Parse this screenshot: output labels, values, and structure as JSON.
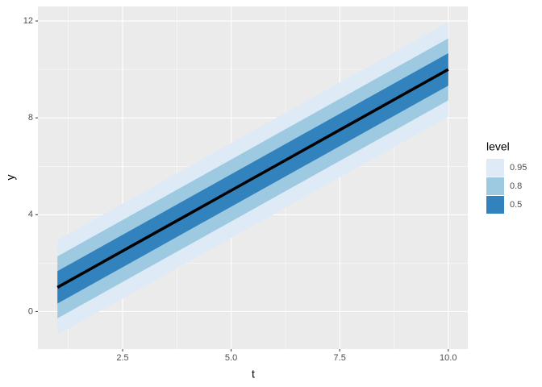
{
  "chart_data": {
    "type": "ribbon",
    "xlabel": "t",
    "ylabel": "y",
    "legend_title": "level",
    "x": [
      1,
      2,
      3,
      4,
      5,
      6,
      7,
      8,
      9,
      10
    ],
    "series": [
      {
        "name": "0.95",
        "color": "#deebf7",
        "lower": [
          -0.96,
          0.04,
          1.04,
          2.04,
          3.04,
          4.04,
          5.04,
          6.04,
          7.04,
          8.04
        ],
        "upper": [
          2.96,
          3.96,
          4.96,
          5.96,
          6.96,
          7.96,
          8.96,
          9.96,
          10.96,
          11.96
        ]
      },
      {
        "name": "0.8",
        "color": "#9ecae1",
        "lower": [
          -0.28,
          0.72,
          1.72,
          2.72,
          3.72,
          4.72,
          5.72,
          6.72,
          7.72,
          8.72
        ],
        "upper": [
          2.28,
          3.28,
          4.28,
          5.28,
          6.28,
          7.28,
          8.28,
          9.28,
          10.28,
          11.28
        ]
      },
      {
        "name": "0.5",
        "color": "#3182bd",
        "lower": [
          0.33,
          1.33,
          2.33,
          3.33,
          4.33,
          5.33,
          6.33,
          7.33,
          8.33,
          9.33
        ],
        "upper": [
          1.67,
          2.67,
          3.67,
          4.67,
          5.67,
          6.67,
          7.67,
          8.67,
          9.67,
          10.67
        ]
      }
    ],
    "line": {
      "color": "#000000",
      "values": [
        1,
        2,
        3,
        4,
        5,
        6,
        7,
        8,
        9,
        10
      ]
    },
    "xlim": [
      0.55,
      10.45
    ],
    "ylim": [
      -1.55,
      12.6
    ],
    "xticks": [
      2.5,
      {
        "value": 5,
        "label": "5.0"
      },
      7.5,
      {
        "value": 10,
        "label": "10.0"
      }
    ],
    "yticks": [
      0,
      4,
      8,
      12
    ],
    "grid": true,
    "legend": "right"
  }
}
